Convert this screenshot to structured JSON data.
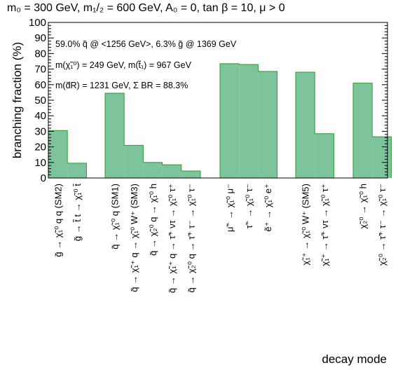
{
  "chart_data": {
    "type": "bar",
    "title": "m₀ = 300 GeV, m₁/₂ = 600 GeV,  A₀ = 0, tan β = 10, μ > 0",
    "xlabel": "decay mode",
    "ylabel": "branching fraction (%)",
    "ylim": [
      0,
      100
    ],
    "yticks": [
      0,
      10,
      20,
      30,
      40,
      50,
      60,
      70,
      80,
      90,
      100
    ],
    "colors": {
      "bar_fill": "#7dc49c",
      "bar_edge": "#2e9a2e"
    },
    "annotations": [
      "59.0% q̃ @ <1256 GeV>,  6.3% g̃ @ 1369 GeV",
      "m(χ̃₁⁰) = 249 GeV,  m(t̃₁) = 967 GeV",
      "m(d̃R) = 1231 GeV, Σ BR = 88.3%"
    ],
    "groups": [
      {
        "categories": [
          "g̃ → χ̃₁⁰ q q (SM2)",
          "g̃ → t̃ t → χ̃₁⁰ t̄"
        ],
        "values": [
          30.5,
          9.5
        ]
      },
      {
        "categories": [
          "q̃ → χ̃₁⁰ q (SM1)",
          "q̃ → χ̃₁⁺ q → χ̃₁⁰ W⁺ (SM3)",
          "q̃ → χ̃₂⁰ q → χ̃₁⁰ h",
          "q̃ → χ̃₁⁺ q → τ̃⁺ ντ → χ̃₁⁰ τ⁺",
          "q̃ → χ̃₂⁰ q → τ̃⁺ τ⁻ → χ̃₁⁰ τ⁻"
        ],
        "values": [
          54.5,
          21.0,
          10.0,
          8.5,
          4.5
        ]
      },
      {
        "categories": [
          "μ̃⁻ → χ̃₁⁰ μ⁻",
          "τ̃⁻ → χ̃₁⁰ τ⁻",
          "ẽ⁺ → χ̃₁⁰ e⁺"
        ],
        "values": [
          73.5,
          73.0,
          68.5
        ]
      },
      {
        "categories": [
          "χ̃₁⁺ → χ̃₁⁰ W⁺ (SM5)",
          "χ̃₁⁺ → τ̃⁺ ντ → χ̃₁⁰ τ⁺"
        ],
        "values": [
          68.0,
          28.5
        ]
      },
      {
        "categories": [
          "χ̃₂⁰ → χ̃₁⁰ h",
          "χ̃₂⁰ → τ̃⁺ τ⁻ → χ̃₁⁰ τ⁻"
        ],
        "values": [
          61.0,
          26.5
        ]
      }
    ]
  }
}
